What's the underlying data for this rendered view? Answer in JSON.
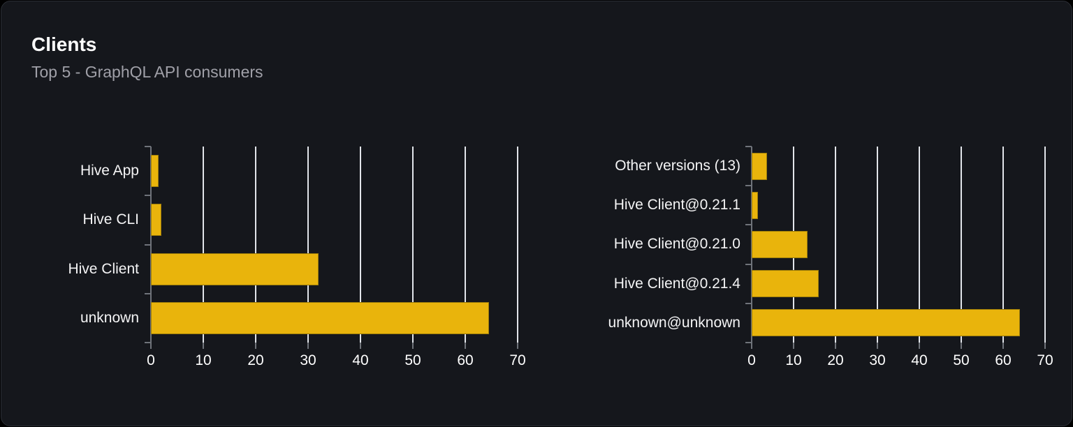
{
  "panel": {
    "title": "Clients",
    "subtitle": "Top 5 - GraphQL API consumers"
  },
  "colors": {
    "background": "#000000",
    "panel_background": "#15171c",
    "panel_border": "#2b2e35",
    "title": "#ffffff",
    "subtitle": "#a0a0a8",
    "bar_fill": "#e9b40c",
    "bar_border": "#9c7c0a",
    "grid_line": "#e2e5ea",
    "axis_line": "#6f737a",
    "tick_label": "#ffffff",
    "category_label": "#f4f4f5"
  },
  "chart_data": [
    {
      "type": "bar",
      "orientation": "horizontal",
      "name": "clients-by-name",
      "categories": [
        "Hive App",
        "Hive CLI",
        "Hive Client",
        "unknown"
      ],
      "values": [
        1.4,
        2,
        32,
        64.5
      ],
      "x_ticks": [
        0,
        10,
        20,
        30,
        40,
        50,
        60,
        70
      ],
      "xlim": [
        0,
        70
      ],
      "grid": true,
      "legend": false
    },
    {
      "type": "bar",
      "orientation": "horizontal",
      "name": "clients-by-version",
      "categories": [
        "Other versions (13)",
        "Hive Client@0.21.1",
        "Hive Client@0.21.0",
        "Hive Client@0.21.4",
        "unknown@unknown"
      ],
      "values": [
        3.7,
        1.5,
        13.4,
        16,
        64
      ],
      "x_ticks": [
        0,
        10,
        20,
        30,
        40,
        50,
        60,
        70
      ],
      "xlim": [
        0,
        70
      ],
      "grid": true,
      "legend": false
    }
  ]
}
